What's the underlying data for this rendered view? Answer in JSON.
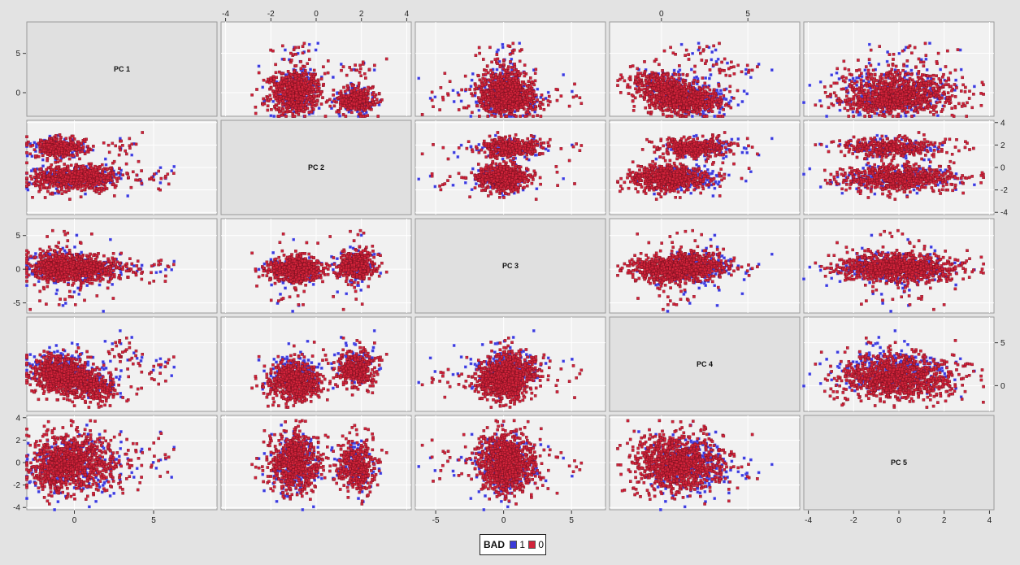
{
  "chart_data": {
    "type": "scatter",
    "subtype": "scatter-matrix",
    "variables": [
      "PC 1",
      "PC 2",
      "PC 3",
      "PC 4",
      "PC 5"
    ],
    "ranges": {
      "PC 1": [
        -3,
        9
      ],
      "PC 2": [
        -4.2,
        4.2
      ],
      "PC 3": [
        -6.5,
        7.5
      ],
      "PC 4": [
        -3,
        8
      ],
      "PC 5": [
        -4.2,
        4.2
      ]
    },
    "ticks": {
      "PC 1": [
        0,
        5
      ],
      "PC 2": [
        -4,
        -2,
        0,
        2,
        4
      ],
      "PC 3": [
        -5,
        0,
        5
      ],
      "PC 4": [
        0,
        5
      ],
      "PC 5": [
        -4,
        -2,
        0,
        2,
        4
      ]
    },
    "point_count_per_panel": 1300,
    "grid": true,
    "legend": {
      "title": "BAD",
      "position": "bottom-center",
      "entries": [
        {
          "label": "1",
          "color": "#3b3bd9",
          "border": "#6b6bff"
        },
        {
          "label": "0",
          "color": "#d1233a",
          "border": "#7a1020"
        }
      ]
    }
  }
}
